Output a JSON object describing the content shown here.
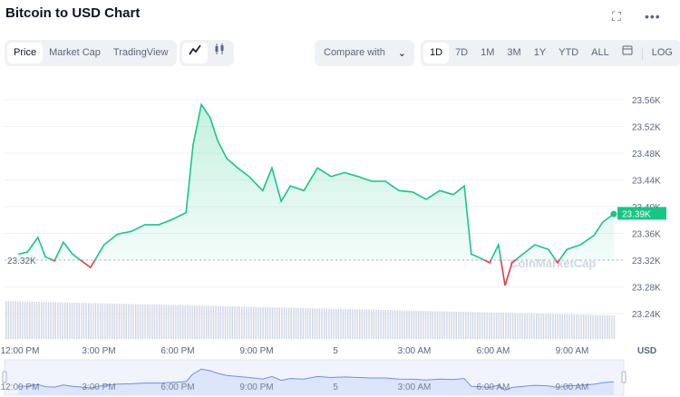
{
  "header": {
    "title": "Bitcoin to USD Chart",
    "fullscreen_icon": "expand-icon",
    "more_icon": "more-horizontal-icon"
  },
  "toolbar": {
    "views": [
      {
        "label": "Price",
        "active": true
      },
      {
        "label": "Market Cap",
        "active": false
      },
      {
        "label": "TradingView",
        "active": false
      }
    ],
    "chart_types": [
      {
        "icon": "line-chart-icon",
        "active": true
      },
      {
        "icon": "candlestick-icon",
        "active": false
      }
    ],
    "compare_label": "Compare with",
    "ranges": [
      {
        "label": "1D",
        "active": true
      },
      {
        "label": "7D"
      },
      {
        "label": "1M"
      },
      {
        "label": "3M"
      },
      {
        "label": "1Y"
      },
      {
        "label": "YTD"
      },
      {
        "label": "ALL"
      }
    ],
    "calendar_icon": "calendar-icon",
    "log_label": "LOG"
  },
  "colors": {
    "up": "#16c784",
    "down": "#ea3943",
    "volume": "#cfd6e4",
    "navigator": "#6f8ee8"
  },
  "chart_data": {
    "type": "line",
    "currency_label": "USD",
    "reference_value": 23.32,
    "reference_label": "23.32K",
    "current_value": 23.39,
    "current_label": "23.39K",
    "watermark": "CoinMarketCap",
    "ylim": [
      23.21,
      23.58
    ],
    "yticks": [
      {
        "v": 23.56,
        "label": "23.56K"
      },
      {
        "v": 23.52,
        "label": "23.52K"
      },
      {
        "v": 23.48,
        "label": "23.48K"
      },
      {
        "v": 23.44,
        "label": "23.44K"
      },
      {
        "v": 23.4,
        "label": "23.40K"
      },
      {
        "v": 23.36,
        "label": "23.36K"
      },
      {
        "v": 23.32,
        "label": "23.32K"
      },
      {
        "v": 23.28,
        "label": "23.28K"
      },
      {
        "v": 23.24,
        "label": "23.24K"
      }
    ],
    "xticks": [
      {
        "t": "12:00",
        "label": "12:00 PM"
      },
      {
        "t": "15:00",
        "label": "3:00 PM"
      },
      {
        "t": "18:00",
        "label": "6:00 PM"
      },
      {
        "t": "21:00",
        "label": "9:00 PM"
      },
      {
        "t": "24:00",
        "label": "5"
      },
      {
        "t": "27:00",
        "label": "3:00 AM"
      },
      {
        "t": "30:00",
        "label": "6:00 AM"
      },
      {
        "t": "33:00",
        "label": "9:00 AM"
      }
    ],
    "points": [
      [
        "11:56",
        23.329
      ],
      [
        "12:17",
        23.332
      ],
      [
        "12:41",
        23.354
      ],
      [
        "12:58",
        23.325
      ],
      [
        "13:19",
        23.319
      ],
      [
        "13:39",
        23.347
      ],
      [
        "14:00",
        23.329
      ],
      [
        "14:41",
        23.309
      ],
      [
        "15:12",
        23.343
      ],
      [
        "15:43",
        23.359
      ],
      [
        "16:14",
        23.363
      ],
      [
        "16:45",
        23.373
      ],
      [
        "17:17",
        23.373
      ],
      [
        "17:48",
        23.381
      ],
      [
        "18:19",
        23.391
      ],
      [
        "18:35",
        23.492
      ],
      [
        "18:54",
        23.553
      ],
      [
        "19:14",
        23.533
      ],
      [
        "19:31",
        23.499
      ],
      [
        "19:52",
        23.472
      ],
      [
        "20:17",
        23.458
      ],
      [
        "20:43",
        23.445
      ],
      [
        "21:14",
        23.424
      ],
      [
        "21:35",
        23.458
      ],
      [
        "21:56",
        23.408
      ],
      [
        "22:17",
        23.431
      ],
      [
        "22:48",
        23.424
      ],
      [
        "23:19",
        23.458
      ],
      [
        "23:50",
        23.445
      ],
      [
        "00:21",
        23.451
      ],
      [
        "00:52",
        23.445
      ],
      [
        "01:23",
        23.438
      ],
      [
        "01:54",
        23.438
      ],
      [
        "02:25",
        23.424
      ],
      [
        "02:56",
        23.422
      ],
      [
        "03:27",
        23.411
      ],
      [
        "03:58",
        23.424
      ],
      [
        "04:29",
        23.418
      ],
      [
        "04:54",
        23.431
      ],
      [
        "05:10",
        23.329
      ],
      [
        "05:31",
        23.323
      ],
      [
        "05:52",
        23.316
      ],
      [
        "06:12",
        23.343
      ],
      [
        "06:27",
        23.282
      ],
      [
        "06:43",
        23.316
      ],
      [
        "07:04",
        23.327
      ],
      [
        "07:35",
        23.343
      ],
      [
        "08:06",
        23.336
      ],
      [
        "08:27",
        23.316
      ],
      [
        "08:48",
        23.336
      ],
      [
        "09:19",
        23.343
      ],
      [
        "09:50",
        23.357
      ],
      [
        "10:10",
        23.377
      ],
      [
        "10:35",
        23.389
      ]
    ]
  }
}
